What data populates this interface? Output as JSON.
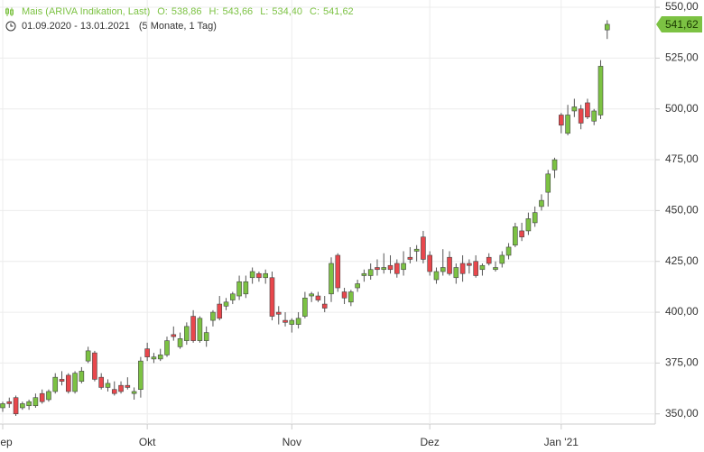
{
  "chart_data": {
    "type": "candlestick",
    "title": "Mais (ARIVA Indikation, Last)",
    "ohlc_header": [
      {
        "key": "O:",
        "label": "538,86"
      },
      {
        "key": "H:",
        "label": "543,66"
      },
      {
        "key": "L:",
        "label": "534,40"
      },
      {
        "key": "C:",
        "label": "541,62"
      }
    ],
    "subtitle": "01.09.2020 - 13.01.2021",
    "period": "(5 Monate, 1 Tag)",
    "last_price": {
      "value": 541.62,
      "label": "541,62"
    },
    "up_color": "#7cc243",
    "down_color": "#e8474c",
    "categories": [
      "Sep",
      null,
      null,
      null,
      null,
      null,
      null,
      null,
      null,
      null,
      null,
      null,
      null,
      null,
      null,
      null,
      null,
      null,
      null,
      null,
      null,
      null,
      "Okt",
      null,
      null,
      null,
      null,
      null,
      null,
      null,
      null,
      null,
      null,
      null,
      null,
      null,
      null,
      null,
      null,
      null,
      null,
      null,
      null,
      null,
      "Nov",
      null,
      null,
      null,
      null,
      null,
      null,
      null,
      null,
      null,
      null,
      null,
      null,
      null,
      null,
      null,
      null,
      null,
      null,
      null,
      null,
      "Dez",
      null,
      null,
      null,
      null,
      null,
      null,
      null,
      null,
      null,
      null,
      null,
      null,
      null,
      null,
      null,
      null,
      null,
      null,
      null,
      "Jan '21",
      null,
      null,
      null,
      null,
      null,
      null,
      null
    ],
    "open": [
      353,
      356,
      358,
      353,
      354,
      354,
      360,
      357,
      361,
      367,
      369,
      361,
      366,
      376,
      380,
      368,
      363,
      362,
      364,
      364,
      360,
      362,
      382,
      377,
      377,
      379,
      389,
      383,
      386,
      398,
      386,
      386,
      396,
      404,
      403,
      406,
      408,
      409,
      417,
      419,
      417,
      417,
      400,
      396,
      394,
      394,
      398,
      408,
      408,
      404,
      409,
      428,
      410,
      405,
      412,
      418,
      418,
      422,
      421,
      423,
      424,
      421,
      427,
      430,
      437,
      428,
      416,
      420,
      427,
      417,
      424,
      424,
      425,
      421,
      427,
      421,
      424,
      428,
      433,
      440,
      440,
      444,
      452,
      459,
      470,
      497,
      488,
      499,
      500,
      503,
      494,
      497,
      538.86
    ],
    "high": [
      356,
      358,
      359,
      356,
      357,
      360,
      362,
      362,
      370,
      371,
      370,
      371,
      373,
      383,
      381,
      370,
      367,
      366,
      366,
      368,
      363,
      378,
      385,
      380,
      382,
      388,
      393,
      390,
      395,
      401,
      398,
      393,
      401,
      408,
      407,
      410,
      418,
      418,
      422,
      420,
      421,
      420,
      403,
      400,
      397,
      400,
      410,
      410,
      410,
      408,
      427,
      429,
      412,
      411,
      416,
      421,
      424,
      426,
      429,
      428,
      426,
      430,
      432,
      433,
      440,
      430,
      422,
      431,
      430,
      424,
      428,
      426,
      428,
      424,
      429,
      425,
      430,
      434,
      444,
      444,
      449,
      452,
      458,
      470,
      476,
      498,
      502,
      505,
      502,
      505,
      500,
      524,
      543.66
    ],
    "low": [
      351,
      353,
      349,
      352,
      352,
      353,
      355,
      356,
      360,
      364,
      360,
      360,
      365,
      375,
      366,
      362,
      361,
      359,
      360,
      362,
      357,
      358,
      376,
      375,
      376,
      378,
      386,
      382,
      384,
      385,
      385,
      383,
      393,
      396,
      401,
      404,
      406,
      407,
      414,
      415,
      414,
      396,
      394,
      393,
      390,
      392,
      397,
      405,
      405,
      400,
      405,
      410,
      404,
      403,
      410,
      415,
      416,
      418,
      419,
      419,
      417,
      418,
      424,
      425,
      424,
      418,
      414,
      418,
      418,
      414,
      415,
      419,
      417,
      418,
      423,
      420,
      422,
      426,
      432,
      435,
      438,
      442,
      450,
      452,
      466,
      488,
      487,
      496,
      490,
      495,
      492,
      495,
      534.4
    ],
    "close": [
      355,
      355,
      350,
      355,
      356,
      358,
      356,
      361,
      368,
      366,
      361,
      370,
      371,
      381,
      367,
      363,
      365,
      360,
      361,
      363,
      361,
      376,
      378,
      378,
      379,
      386,
      388,
      387,
      393,
      386,
      397,
      390,
      400,
      397,
      405,
      409,
      415,
      415,
      420,
      417,
      419,
      398,
      399,
      395,
      396,
      397,
      407,
      409,
      406,
      402,
      424,
      412,
      407,
      410,
      414,
      419,
      421,
      421,
      422,
      421,
      419,
      424,
      426,
      431,
      426,
      420,
      420,
      422,
      419,
      422,
      419,
      423,
      418,
      423,
      424,
      422,
      428,
      432,
      442,
      437,
      446,
      449,
      455,
      468,
      475,
      492,
      497,
      501,
      493,
      496,
      499,
      521,
      541.62
    ],
    "ylim": [
      345,
      552
    ],
    "yticks": [
      {
        "value": 350,
        "label": "350,00"
      },
      {
        "value": 375,
        "label": "375,00"
      },
      {
        "value": 400,
        "label": "400,00"
      },
      {
        "value": 425,
        "label": "425,00"
      },
      {
        "value": 450,
        "label": "450,00"
      },
      {
        "value": 475,
        "label": "475,00"
      },
      {
        "value": 500,
        "label": "500,00"
      },
      {
        "value": 525,
        "label": "525,00"
      },
      {
        "value": 550,
        "label": "550,00"
      }
    ],
    "grid": true
  }
}
